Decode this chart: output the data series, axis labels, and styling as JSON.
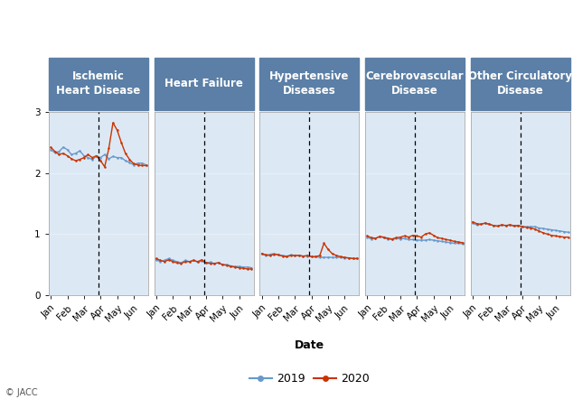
{
  "panels": [
    {
      "title": "Ischemic\nHeart Disease",
      "ylim": [
        0,
        3
      ],
      "show_yticks": true,
      "data_2019": [
        2.38,
        2.33,
        2.35,
        2.42,
        2.38,
        2.3,
        2.32,
        2.36,
        2.28,
        2.25,
        2.22,
        2.27,
        2.25,
        2.3,
        2.23,
        2.27,
        2.25,
        2.25,
        2.2,
        2.17,
        2.13,
        2.16,
        2.16,
        2.13
      ],
      "data_2020": [
        2.42,
        2.35,
        2.3,
        2.32,
        2.28,
        2.23,
        2.2,
        2.22,
        2.25,
        2.3,
        2.25,
        2.28,
        2.2,
        2.1,
        2.4,
        2.82,
        2.7,
        2.5,
        2.32,
        2.22,
        2.15,
        2.13,
        2.12,
        2.12
      ]
    },
    {
      "title": "Heart Failure",
      "ylim": [
        0,
        3
      ],
      "show_yticks": false,
      "data_2019": [
        0.58,
        0.55,
        0.57,
        0.6,
        0.57,
        0.55,
        0.53,
        0.57,
        0.55,
        0.57,
        0.54,
        0.56,
        0.53,
        0.54,
        0.52,
        0.53,
        0.5,
        0.5,
        0.48,
        0.47,
        0.47,
        0.46,
        0.46,
        0.45
      ],
      "data_2020": [
        0.6,
        0.57,
        0.55,
        0.58,
        0.55,
        0.53,
        0.52,
        0.55,
        0.55,
        0.57,
        0.55,
        0.58,
        0.53,
        0.52,
        0.52,
        0.53,
        0.5,
        0.49,
        0.47,
        0.46,
        0.45,
        0.44,
        0.43,
        0.43
      ]
    },
    {
      "title": "Hypertensive\nDiseases",
      "ylim": [
        0,
        3
      ],
      "show_yticks": false,
      "data_2019": [
        0.68,
        0.65,
        0.67,
        0.68,
        0.66,
        0.65,
        0.64,
        0.66,
        0.65,
        0.65,
        0.64,
        0.64,
        0.63,
        0.63,
        0.62,
        0.62,
        0.62,
        0.62,
        0.62,
        0.62,
        0.61,
        0.61,
        0.6,
        0.6
      ],
      "data_2020": [
        0.68,
        0.66,
        0.65,
        0.67,
        0.66,
        0.64,
        0.63,
        0.65,
        0.65,
        0.65,
        0.64,
        0.65,
        0.63,
        0.63,
        0.65,
        0.85,
        0.75,
        0.68,
        0.65,
        0.63,
        0.62,
        0.61,
        0.6,
        0.6
      ]
    },
    {
      "title": "Cerebrovascular\nDisease",
      "ylim": [
        0,
        3
      ],
      "show_yticks": false,
      "data_2019": [
        0.95,
        0.92,
        0.93,
        0.96,
        0.94,
        0.92,
        0.91,
        0.93,
        0.92,
        0.93,
        0.91,
        0.91,
        0.9,
        0.9,
        0.9,
        0.91,
        0.9,
        0.89,
        0.88,
        0.87,
        0.86,
        0.85,
        0.85,
        0.84
      ],
      "data_2020": [
        0.97,
        0.94,
        0.93,
        0.96,
        0.95,
        0.93,
        0.92,
        0.94,
        0.95,
        0.97,
        0.95,
        0.98,
        0.97,
        0.95,
        1.0,
        1.02,
        0.98,
        0.94,
        0.93,
        0.91,
        0.9,
        0.88,
        0.87,
        0.86
      ]
    },
    {
      "title": "Other Circulatory\nDisease",
      "ylim": [
        0,
        3
      ],
      "show_yticks": false,
      "data_2019": [
        1.18,
        1.15,
        1.16,
        1.18,
        1.16,
        1.14,
        1.13,
        1.15,
        1.14,
        1.15,
        1.14,
        1.14,
        1.12,
        1.12,
        1.12,
        1.12,
        1.1,
        1.09,
        1.08,
        1.07,
        1.06,
        1.05,
        1.04,
        1.03
      ],
      "data_2020": [
        1.2,
        1.17,
        1.16,
        1.18,
        1.16,
        1.14,
        1.13,
        1.15,
        1.14,
        1.15,
        1.13,
        1.14,
        1.12,
        1.11,
        1.1,
        1.08,
        1.05,
        1.02,
        1.0,
        0.98,
        0.97,
        0.96,
        0.95,
        0.95
      ]
    }
  ],
  "months": [
    "Jan",
    "Feb",
    "Mar",
    "Apr",
    "May",
    "Jun"
  ],
  "n_weeks": 24,
  "dashed_line_week": 11.5,
  "color_2019": "#6699cc",
  "color_2020": "#cc3300",
  "panel_bg": "#dce9f5",
  "header_bg": "#5b7fa6",
  "header_text": "white",
  "figure_bg": "white",
  "xlabel": "Date",
  "legend_labels": [
    "2019",
    "2020"
  ],
  "title_fontsize": 8.5,
  "axis_label_fontsize": 9,
  "tick_fontsize": 7.5
}
